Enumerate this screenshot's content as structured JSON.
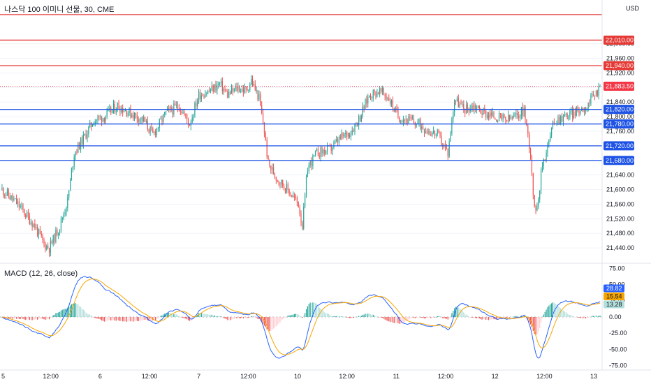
{
  "title": "나스닥 100 이미니 선물, 30, CME",
  "currency": "USD",
  "colors": {
    "up": "#26a69a",
    "down": "#ef5350",
    "up_light": "#b2dfdb",
    "down_light": "#ffcdd2",
    "red_level": "#e53935",
    "blue_level": "#1e53e5",
    "last_price": "#f23645",
    "macd_line": "#2962ff",
    "signal_line": "#f7a600",
    "hist_tag": "#b2dfdb"
  },
  "chart_data": [
    {
      "type": "candlestick",
      "price_axis": {
        "ylim": [
          21400,
          22120
        ],
        "ticks": [
          21440,
          21480,
          21520,
          21560,
          21600,
          21640,
          21680,
          21720,
          21760,
          21800,
          21840,
          21880,
          21920,
          21960,
          22000
        ],
        "tick_labels": [
          "21,440.00",
          "21,480.00",
          "21,520.00",
          "21,560.00",
          "21,600.00",
          "21,640.00",
          "21,680.00",
          "21,720.00",
          "21,760.00",
          "21,800.00",
          "21,840.00",
          "21,880.00",
          "21,920.00",
          "21,960.00",
          "22,000.00"
        ]
      },
      "red_levels": [
        {
          "value": 22010,
          "label": "22,010.00"
        },
        {
          "value": 21940,
          "label": "21,940.00"
        }
      ],
      "blue_levels": [
        {
          "value": 21820,
          "label": "21,820.00"
        },
        {
          "value": 21780,
          "label": "21,780.00"
        },
        {
          "value": 21720,
          "label": "21,720.00"
        },
        {
          "value": 21680,
          "label": "21,680.00"
        }
      ],
      "top_level": 22080,
      "last_price": {
        "value": 21883.5,
        "label": "21,883.50"
      },
      "x_axis_labels": [
        "5",
        "12:00",
        "6",
        "12:00",
        "7",
        "12:00",
        "10",
        "12:00",
        "11",
        "12:00",
        "12",
        "12:00",
        "13"
      ],
      "path_points": [
        [
          0,
          21600
        ],
        [
          12,
          21560
        ],
        [
          25,
          21500
        ],
        [
          32,
          21450
        ],
        [
          36,
          21440
        ],
        [
          44,
          21500
        ],
        [
          50,
          21570
        ],
        [
          55,
          21700
        ],
        [
          62,
          21740
        ],
        [
          70,
          21790
        ],
        [
          78,
          21800
        ],
        [
          88,
          21830
        ],
        [
          98,
          21810
        ],
        [
          108,
          21790
        ],
        [
          115,
          21750
        ],
        [
          125,
          21810
        ],
        [
          135,
          21830
        ],
        [
          143,
          21780
        ],
        [
          150,
          21860
        ],
        [
          158,
          21870
        ],
        [
          166,
          21890
        ],
        [
          172,
          21860
        ],
        [
          180,
          21880
        ],
        [
          186,
          21870
        ],
        [
          190,
          21900
        ],
        [
          196,
          21850
        ],
        [
          200,
          21760
        ],
        [
          203,
          21670
        ],
        [
          210,
          21630
        ],
        [
          220,
          21590
        ],
        [
          226,
          21560
        ],
        [
          229,
          21500
        ],
        [
          233,
          21660
        ],
        [
          240,
          21700
        ],
        [
          250,
          21710
        ],
        [
          258,
          21740
        ],
        [
          266,
          21760
        ],
        [
          273,
          21800
        ],
        [
          280,
          21860
        ],
        [
          288,
          21870
        ],
        [
          295,
          21850
        ],
        [
          302,
          21800
        ],
        [
          310,
          21790
        ],
        [
          318,
          21780
        ],
        [
          326,
          21760
        ],
        [
          332,
          21750
        ],
        [
          340,
          21700
        ],
        [
          345,
          21850
        ],
        [
          352,
          21820
        ],
        [
          360,
          21830
        ],
        [
          368,
          21810
        ],
        [
          376,
          21800
        ],
        [
          384,
          21790
        ],
        [
          392,
          21800
        ],
        [
          398,
          21820
        ],
        [
          403,
          21700
        ],
        [
          406,
          21540
        ],
        [
          409,
          21580
        ],
        [
          412,
          21670
        ],
        [
          416,
          21720
        ],
        [
          421,
          21790
        ],
        [
          428,
          21800
        ],
        [
          436,
          21810
        ],
        [
          446,
          21830
        ],
        [
          456,
          21880
        ]
      ]
    },
    {
      "type": "macd",
      "title": "MACD (12, 26, close)",
      "ylim": [
        -82,
        82
      ],
      "ticks": [
        75,
        50,
        25,
        0,
        -25,
        -50,
        -75
      ],
      "tick_labels": [
        "75.00",
        "50.00",
        "25.00",
        "0.00",
        "-25.00",
        "-50.00",
        "-75.00"
      ],
      "readouts": [
        {
          "value": 28.82,
          "label": "28.82"
        },
        {
          "value": 15.54,
          "label": "15.54"
        },
        {
          "value": 13.28,
          "label": "13.28"
        }
      ]
    }
  ]
}
